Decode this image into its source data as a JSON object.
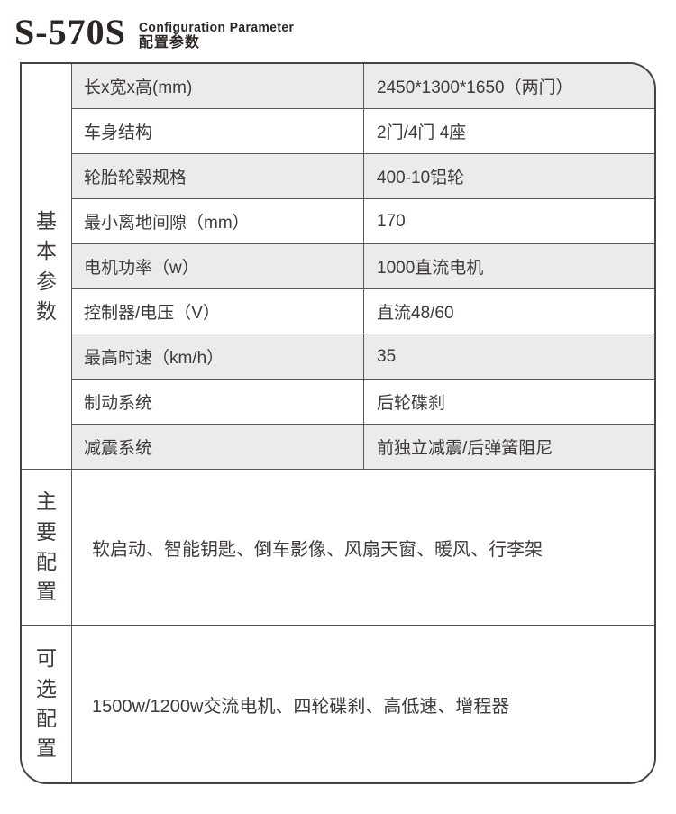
{
  "header": {
    "model": "S-570S",
    "subtitle_en": "Configuration Parameter",
    "subtitle_zh": "配置参数"
  },
  "table": {
    "sections": [
      {
        "label": "基本参数",
        "rows": [
          {
            "name": "长x宽x高(mm)",
            "value": "2450*1300*1650（两门）"
          },
          {
            "name": "车身结构",
            "value": "2门/4门 4座"
          },
          {
            "name": "轮胎轮毂规格",
            "value": "400-10铝轮"
          },
          {
            "name": "最小离地间隙（mm）",
            "value": "170"
          },
          {
            "name": "电机功率（w）",
            "value": "1000直流电机"
          },
          {
            "name": "控制器/电压（V）",
            "value": "直流48/60"
          },
          {
            "name": "最高时速（km/h）",
            "value": "35"
          },
          {
            "name": "制动系统",
            "value": "后轮碟刹"
          },
          {
            "name": "减震系统",
            "value": "前独立减震/后弹簧阻尼"
          }
        ]
      },
      {
        "label": "主要配置",
        "content": "软启动、智能钥匙、倒车影像、风扇天窗、暖风、行李架"
      },
      {
        "label": "可选配置",
        "content": "1500w/1200w交流电机、四轮碟刹、高低速、增程器"
      }
    ]
  },
  "colors": {
    "row_alt_background": "#ebebea",
    "border": "#474140",
    "grid_line": "#5c5552",
    "text": "#3f3a39"
  }
}
